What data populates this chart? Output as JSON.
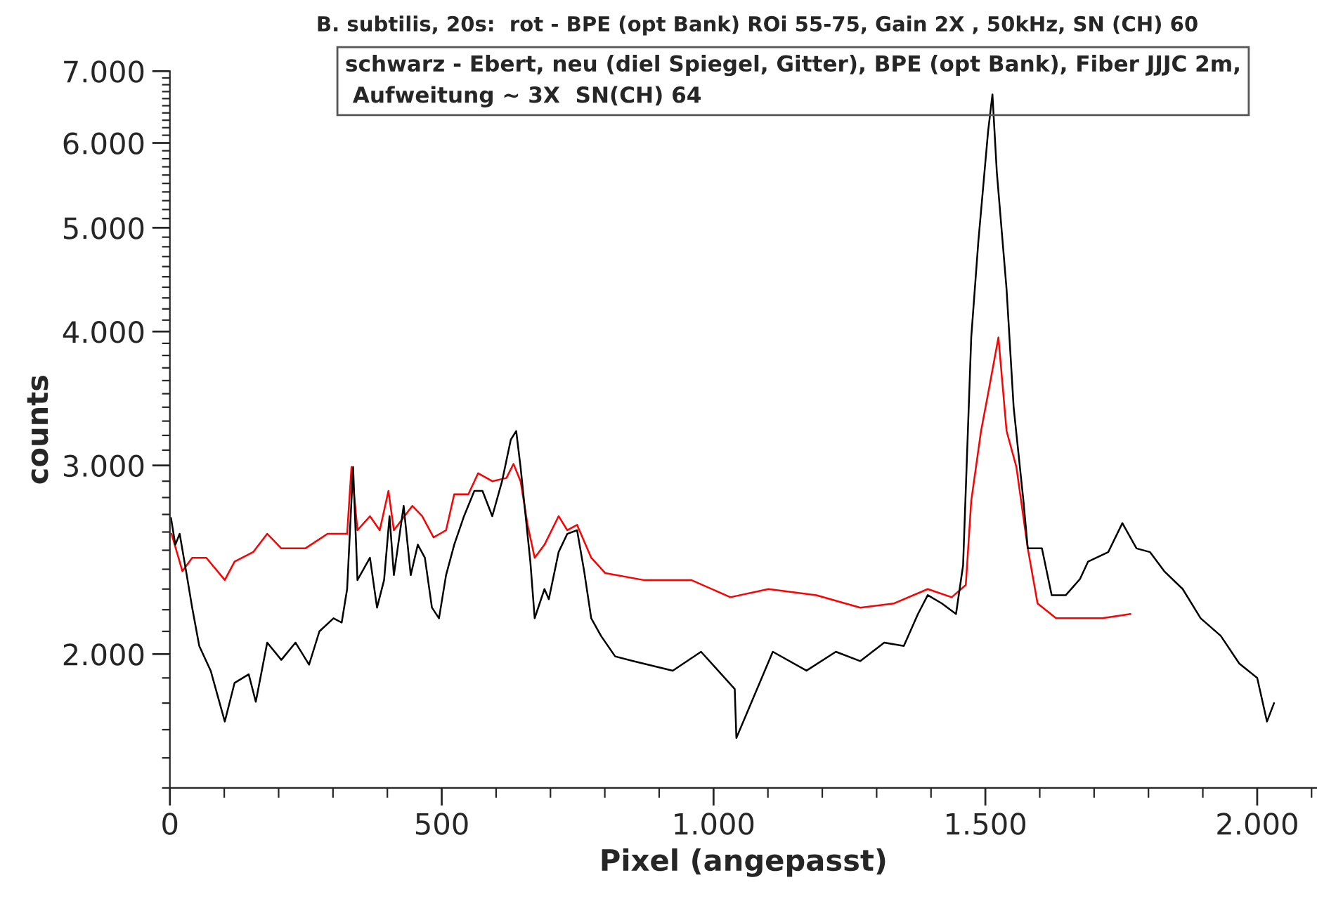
{
  "chart_data": {
    "type": "line",
    "title": "B. subtilis, 20s:  rot - BPE (opt Bank) ROi 55-75, Gain 2X , 50kHz, SN (CH) 60",
    "annotations": [
      "schwarz - Ebert, neu (diel Spiegel, Gitter), BPE (opt Bank), Fiber JJJC 2m,\n Aufweitung ~ 3X  SN(CH) 64"
    ],
    "xlabel": "Pixel (angepasst)",
    "ylabel": "counts",
    "log": "y",
    "grid": false,
    "legend": false,
    "marker": "none",
    "line_style": "solid",
    "xlim": [
      0,
      2110
    ],
    "ylim": [
      1500,
      7000
    ],
    "xticks": [
      0,
      {
        "value": 100,
        "label": null
      },
      {
        "value": 200,
        "label": null
      },
      {
        "value": 300,
        "label": null
      },
      {
        "value": 400,
        "label": null
      },
      500,
      {
        "value": 600,
        "label": null
      },
      {
        "value": 700,
        "label": null
      },
      {
        "value": 800,
        "label": null
      },
      {
        "value": 900,
        "label": null
      },
      {
        "value": 1000,
        "label": "1.000"
      },
      {
        "value": 1100,
        "label": null
      },
      {
        "value": 1200,
        "label": null
      },
      {
        "value": 1300,
        "label": null
      },
      {
        "value": 1400,
        "label": null
      },
      {
        "value": 1500,
        "label": "1.500"
      },
      {
        "value": 1600,
        "label": null
      },
      {
        "value": 1700,
        "label": null
      },
      {
        "value": 1800,
        "label": null
      },
      {
        "value": 1900,
        "label": null
      },
      {
        "value": 2000,
        "label": "2.000"
      },
      {
        "value": 2100,
        "label": null
      }
    ],
    "yticks": [
      {
        "value": 1500,
        "label": null
      },
      {
        "value": 1600,
        "label": null
      },
      {
        "value": 1700,
        "label": null
      },
      {
        "value": 1800,
        "label": null
      },
      {
        "value": 1900,
        "label": null
      },
      {
        "value": 2000,
        "label": "2.000"
      },
      {
        "value": 2100,
        "label": null
      },
      {
        "value": 2200,
        "label": null
      },
      {
        "value": 2300,
        "label": null
      },
      {
        "value": 2400,
        "label": null
      },
      {
        "value": 2500,
        "label": null
      },
      {
        "value": 2600,
        "label": null
      },
      {
        "value": 2700,
        "label": null
      },
      {
        "value": 2800,
        "label": null
      },
      {
        "value": 2900,
        "label": null
      },
      {
        "value": 3000,
        "label": "3.000"
      },
      {
        "value": 3100,
        "label": null
      },
      {
        "value": 3200,
        "label": null
      },
      {
        "value": 3300,
        "label": null
      },
      {
        "value": 3400,
        "label": null
      },
      {
        "value": 3500,
        "label": null
      },
      {
        "value": 3600,
        "label": null
      },
      {
        "value": 3700,
        "label": null
      },
      {
        "value": 3800,
        "label": null
      },
      {
        "value": 3900,
        "label": null
      },
      {
        "value": 4000,
        "label": "4.000"
      },
      {
        "value": 4100,
        "label": null
      },
      {
        "value": 4200,
        "label": null
      },
      {
        "value": 4300,
        "label": null
      },
      {
        "value": 4400,
        "label": null
      },
      {
        "value": 4500,
        "label": null
      },
      {
        "value": 4600,
        "label": null
      },
      {
        "value": 4700,
        "label": null
      },
      {
        "value": 4800,
        "label": null
      },
      {
        "value": 4900,
        "label": null
      },
      {
        "value": 5000,
        "label": "5.000"
      },
      {
        "value": 5100,
        "label": null
      },
      {
        "value": 5200,
        "label": null
      },
      {
        "value": 5300,
        "label": null
      },
      {
        "value": 5400,
        "label": null
      },
      {
        "value": 5500,
        "label": null
      },
      {
        "value": 5600,
        "label": null
      },
      {
        "value": 5700,
        "label": null
      },
      {
        "value": 5800,
        "label": null
      },
      {
        "value": 5900,
        "label": null
      },
      {
        "value": 6000,
        "label": "6.000"
      },
      {
        "value": 6100,
        "label": null
      },
      {
        "value": 6200,
        "label": null
      },
      {
        "value": 6300,
        "label": null
      },
      {
        "value": 6400,
        "label": null
      },
      {
        "value": 6500,
        "label": null
      },
      {
        "value": 6600,
        "label": null
      },
      {
        "value": 6700,
        "label": null
      },
      {
        "value": 6800,
        "label": null
      },
      {
        "value": 6900,
        "label": null
      },
      {
        "value": 7000,
        "label": "7.000"
      }
    ],
    "series": [
      {
        "color": "#ff0000",
        "x": [
          3,
          23,
          41,
          67,
          101,
          119,
          153,
          179,
          205,
          249,
          290,
          326,
          334,
          345,
          368,
          386,
          402,
          412,
          446,
          464,
          485,
          508,
          523,
          549,
          567,
          593,
          619,
          632,
          645,
          658,
          671,
          689,
          715,
          731,
          749,
          775,
          801,
          871,
          959,
          1031,
          1101,
          1189,
          1270,
          1332,
          1394,
          1438,
          1464,
          1474,
          1492,
          1505,
          1524,
          1539,
          1557,
          1578,
          1596,
          1630,
          1674,
          1715,
          1767
        ],
        "values": [
          2590,
          2390,
          2460,
          2460,
          2345,
          2440,
          2490,
          2590,
          2510,
          2510,
          2590,
          2590,
          2990,
          2610,
          2690,
          2610,
          2840,
          2610,
          2750,
          2690,
          2570,
          2610,
          2820,
          2820,
          2950,
          2900,
          2920,
          3010,
          2900,
          2640,
          2460,
          2530,
          2690,
          2610,
          2640,
          2460,
          2380,
          2345,
          2345,
          2260,
          2300,
          2270,
          2210,
          2230,
          2300,
          2260,
          2320,
          2780,
          3230,
          3500,
          3950,
          3230,
          2990,
          2510,
          2230,
          2160,
          2160,
          2160,
          2180
        ]
      },
      {
        "color": "#000000",
        "x": [
          2,
          10,
          18,
          31,
          41,
          54,
          75,
          101,
          119,
          145,
          158,
          179,
          205,
          231,
          256,
          275,
          301,
          316,
          326,
          337,
          345,
          368,
          381,
          394,
          404,
          412,
          430,
          443,
          456,
          469,
          482,
          495,
          508,
          523,
          541,
          560,
          575,
          593,
          611,
          627,
          637,
          645,
          663,
          671,
          689,
          697,
          715,
          731,
          749,
          762,
          775,
          793,
          819,
          852,
          925,
          977,
          1039,
          1042,
          1109,
          1171,
          1225,
          1270,
          1314,
          1350,
          1376,
          1394,
          1420,
          1446,
          1459,
          1474,
          1487,
          1505,
          1513,
          1521,
          1539,
          1552,
          1570,
          1578,
          1604,
          1622,
          1648,
          1674,
          1689,
          1726,
          1752,
          1778,
          1803,
          1829,
          1863,
          1896,
          1933,
          1967,
          2000,
          2018,
          2031
        ],
        "values": [
          2680,
          2530,
          2590,
          2370,
          2210,
          2035,
          1930,
          1730,
          1880,
          1915,
          1805,
          2050,
          1975,
          2050,
          1955,
          2100,
          2160,
          2140,
          2300,
          2990,
          2345,
          2460,
          2210,
          2345,
          2690,
          2370,
          2750,
          2370,
          2530,
          2460,
          2210,
          2160,
          2370,
          2530,
          2690,
          2840,
          2840,
          2690,
          2900,
          3170,
          3230,
          2990,
          2440,
          2160,
          2300,
          2250,
          2490,
          2590,
          2610,
          2390,
          2160,
          2080,
          1990,
          1970,
          1930,
          2010,
          1855,
          1670,
          2010,
          1930,
          2010,
          1970,
          2050,
          2035,
          2180,
          2270,
          2230,
          2180,
          2420,
          3950,
          4850,
          6150,
          6660,
          5640,
          4380,
          3400,
          2780,
          2510,
          2510,
          2270,
          2270,
          2350,
          2440,
          2490,
          2650,
          2510,
          2490,
          2390,
          2300,
          2160,
          2080,
          1960,
          1900,
          1730,
          1800
        ]
      }
    ]
  }
}
